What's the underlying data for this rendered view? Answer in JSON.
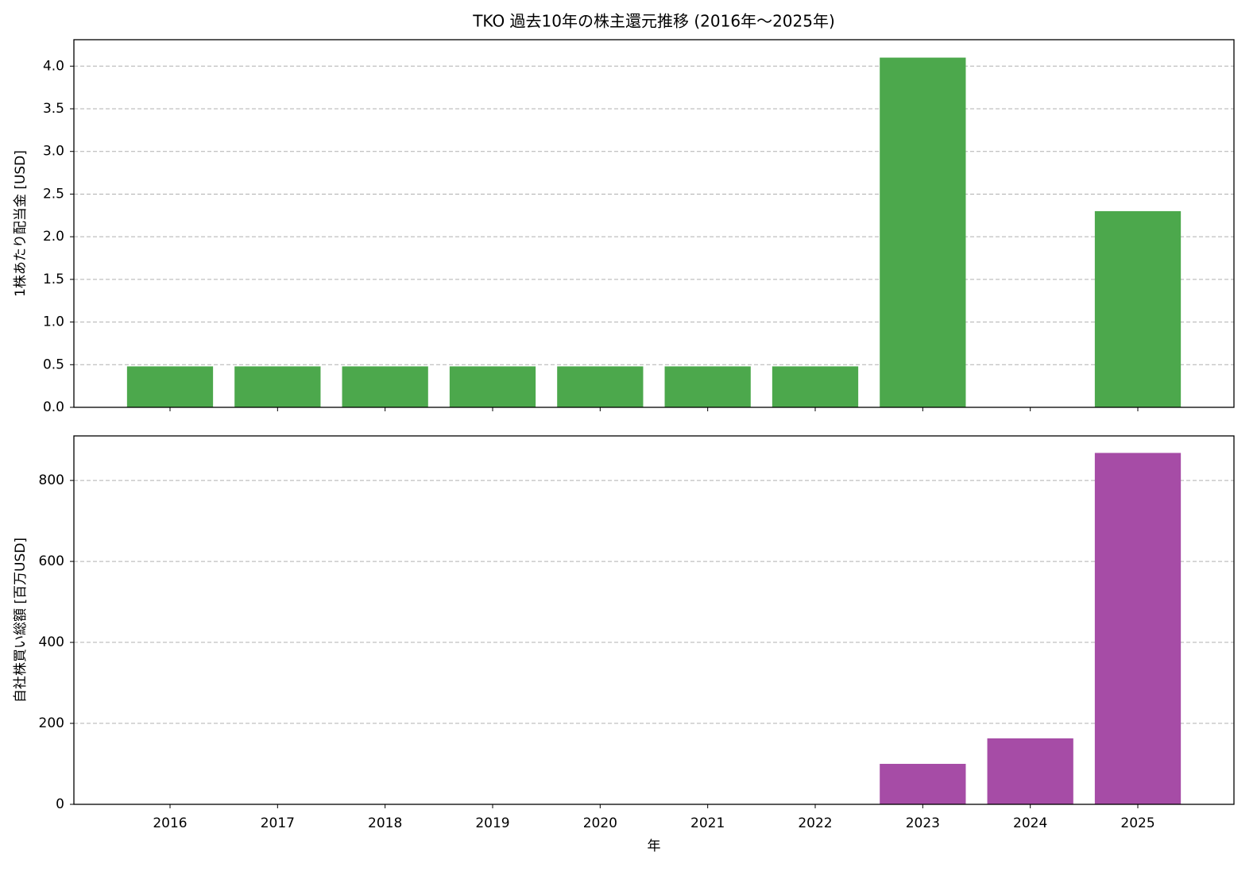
{
  "title": "TKO 過去10年の株主還元推移 (2016年～2025年)",
  "chart_data": [
    {
      "type": "bar",
      "sharex": true,
      "ylabel": "1株あたり配当金 [USD]",
      "values": [
        0.48,
        0.48,
        0.48,
        0.48,
        0.48,
        0.48,
        0.48,
        4.1,
        0,
        2.3
      ],
      "color": "#4ca84c",
      "ylim": [
        0,
        4.31
      ],
      "yticks": [
        {
          "value": 0,
          "label": "0.0"
        },
        0.5,
        {
          "value": 1,
          "label": "1.0"
        },
        1.5,
        {
          "value": 2,
          "label": "2.0"
        },
        2.5,
        {
          "value": 3,
          "label": "3.0"
        },
        3.5,
        {
          "value": 4,
          "label": "4.0"
        }
      ],
      "grid": true
    },
    {
      "type": "bar",
      "ylabel": "自社株買い総額 [百万USD]",
      "xlabel": "年",
      "categories": [
        "2016",
        "2017",
        "2018",
        "2019",
        "2020",
        "2021",
        "2022",
        "2023",
        "2024",
        "2025"
      ],
      "values": [
        0,
        0,
        0,
        0,
        0,
        0,
        0,
        100,
        163,
        868
      ],
      "color": "#a64ca6",
      "ylim": [
        0,
        910
      ],
      "yticks": [
        0,
        200,
        400,
        600,
        800
      ],
      "grid": true
    }
  ]
}
